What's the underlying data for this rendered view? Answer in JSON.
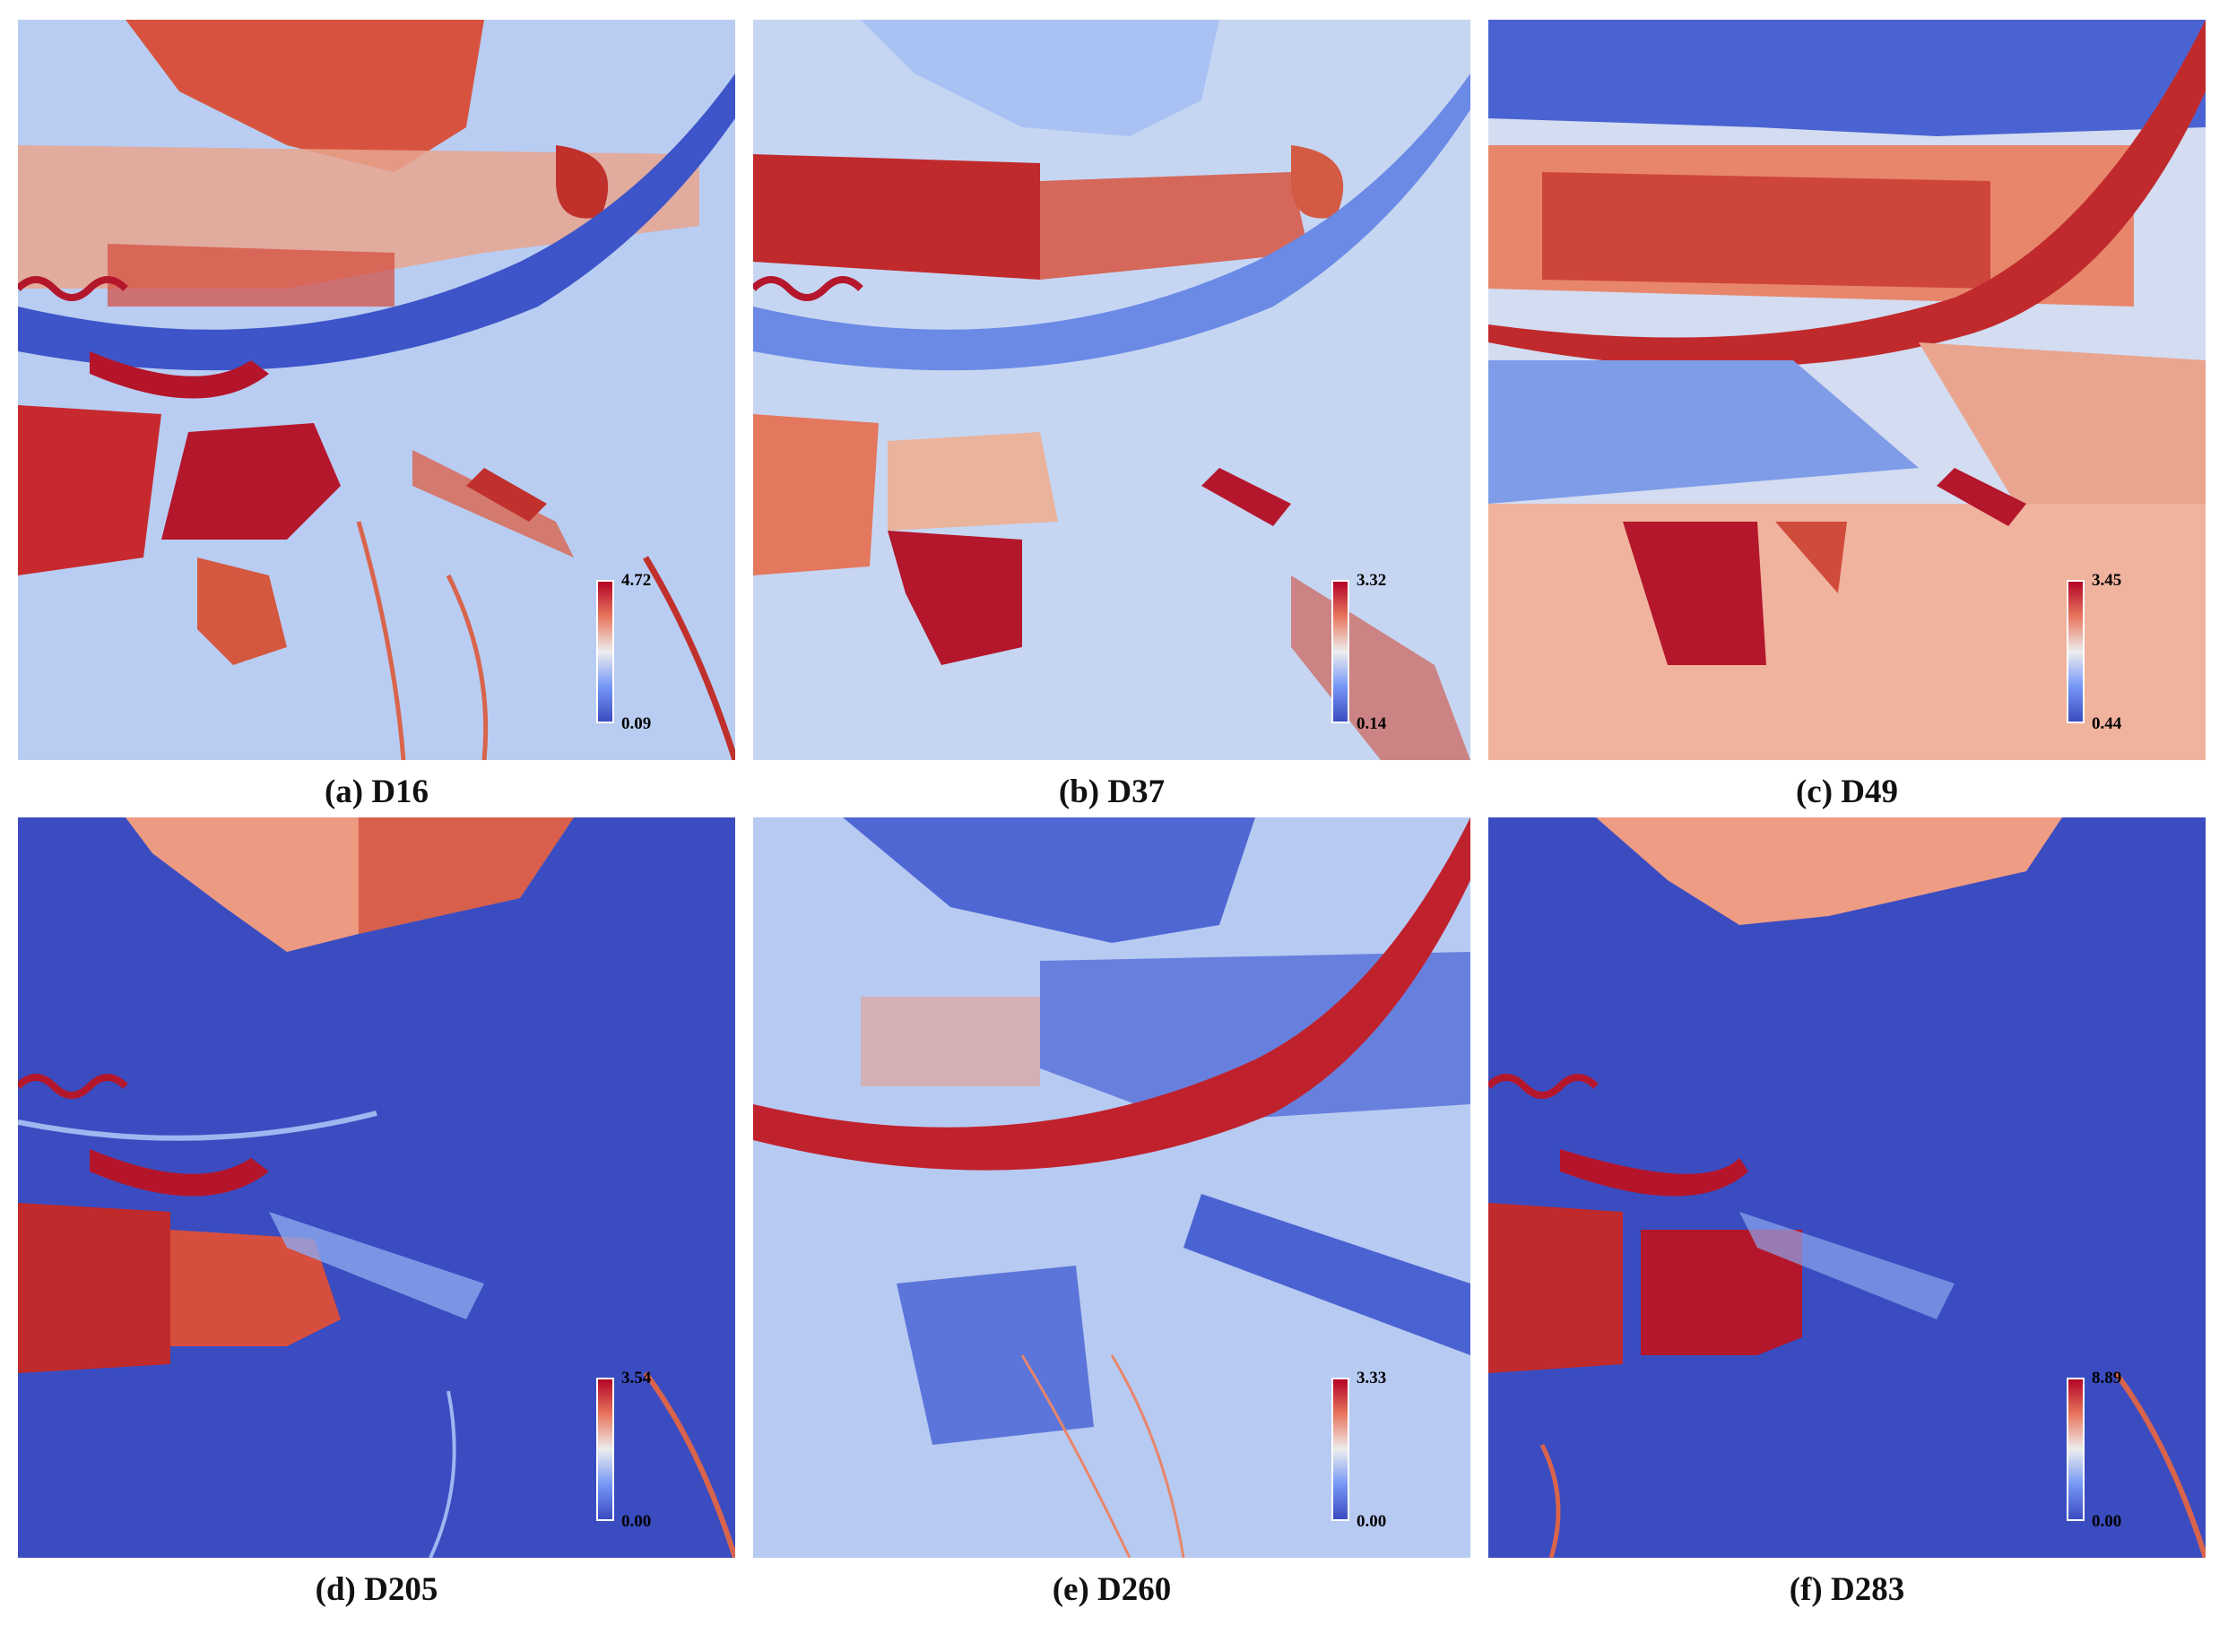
{
  "panels": [
    {
      "caption": "(a) D16",
      "colorbar": {
        "max": "4.72",
        "min": "0.09"
      }
    },
    {
      "caption": "(b) D37",
      "colorbar": {
        "max": "3.32",
        "min": "0.14"
      }
    },
    {
      "caption": "(c) D49",
      "colorbar": {
        "max": "3.45",
        "min": "0.44"
      }
    },
    {
      "caption": "(d) D205",
      "colorbar": {
        "max": "3.54",
        "min": "0.00"
      }
    },
    {
      "caption": "(e) D260",
      "colorbar": {
        "max": "3.33",
        "min": "0.00"
      }
    },
    {
      "caption": "(f) D283",
      "colorbar": {
        "max": "8.89",
        "min": "0.00"
      }
    }
  ],
  "colormap": {
    "high": "#b40426",
    "mid": "#ededed",
    "low": "#3b4cc0"
  }
}
